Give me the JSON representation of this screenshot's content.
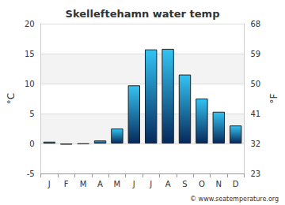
{
  "chart_data": {
    "type": "bar",
    "title": "Skelleftehamn water temp",
    "categories": [
      "J",
      "F",
      "M",
      "A",
      "M",
      "J",
      "J",
      "A",
      "S",
      "O",
      "N",
      "D"
    ],
    "values": [
      0.3,
      -0.2,
      -0.1,
      0.5,
      2.5,
      9.7,
      15.7,
      15.8,
      11.5,
      7.5,
      5.3,
      3.0
    ],
    "color": "#33c3f3",
    "y_label": "°C",
    "y2_label": "°F",
    "ylim": [
      -5,
      20
    ],
    "yticks": [
      -5,
      0,
      5,
      10,
      15,
      20
    ],
    "y2lim": [
      23,
      68
    ],
    "y2ticks": [
      23,
      32,
      41,
      50,
      59,
      68
    ],
    "grid": true,
    "annotation": "© www.seatemperature.org"
  }
}
